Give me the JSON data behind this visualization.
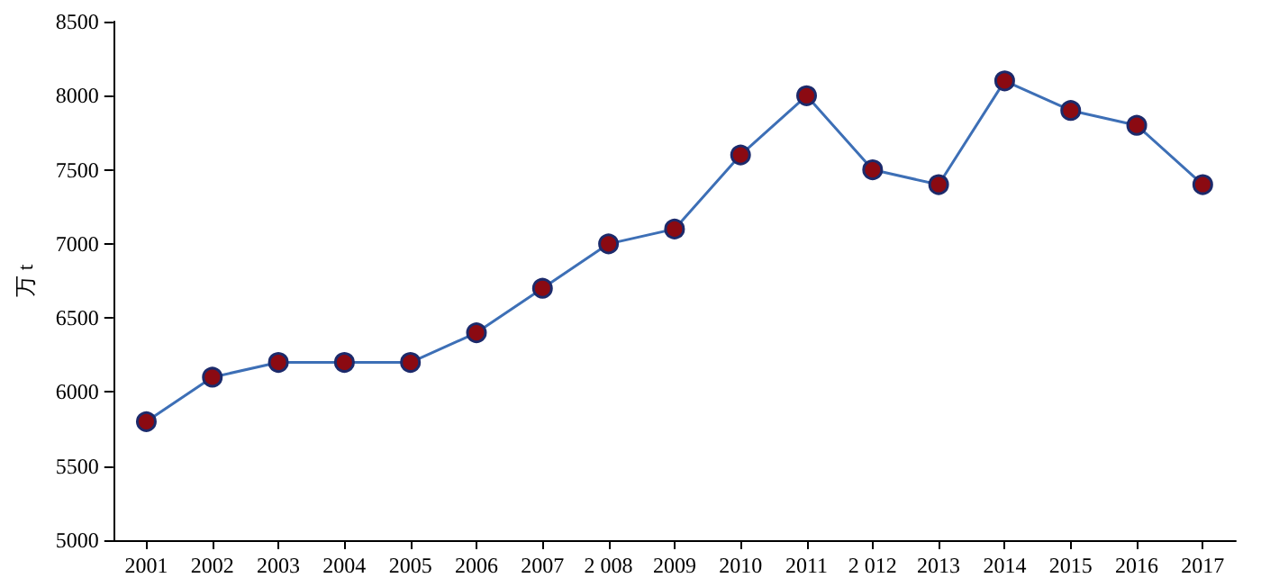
{
  "chart_data": {
    "type": "line",
    "ylabel": "万 t",
    "categories": [
      "2001",
      "2002",
      "2003",
      "2004",
      "2005",
      "2006",
      "2007",
      "2 008",
      "2009",
      "2010",
      "2011",
      "2 012",
      "2013",
      "2014",
      "2015",
      "2016",
      "2017"
    ],
    "series": [
      {
        "color": "#3d6fb6",
        "values": [
          5800,
          6100,
          6200,
          6200,
          6200,
          6400,
          6700,
          7000,
          7100,
          7600,
          8000,
          7500,
          7400,
          8100,
          7900,
          7800,
          7400
        ]
      }
    ],
    "ylim": [
      5000,
      8500
    ],
    "yticks": [
      5000,
      5500,
      6000,
      6500,
      7000,
      7500,
      8000,
      8500
    ],
    "grid": false,
    "marker": "circle",
    "line_style": "solid"
  }
}
